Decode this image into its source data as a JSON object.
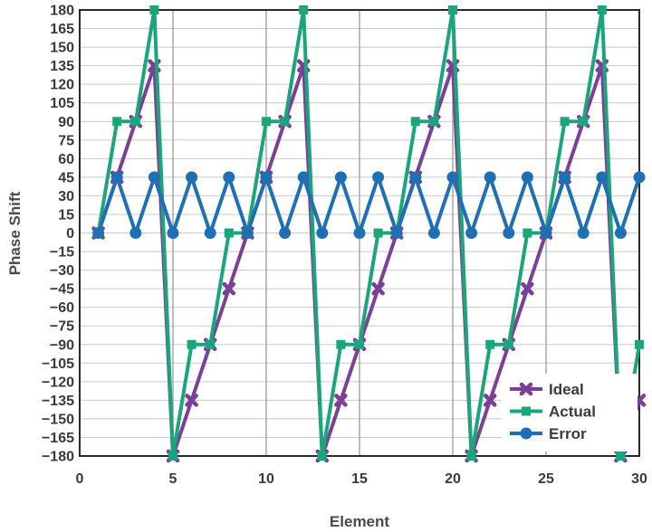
{
  "chart_data": {
    "type": "line",
    "xlabel": "Element",
    "ylabel": "Phase Shift",
    "xlim": [
      0,
      30
    ],
    "ylim": [
      -180,
      180
    ],
    "xticks": [
      0,
      5,
      10,
      15,
      20,
      25,
      30
    ],
    "yticks": [
      180,
      165,
      150,
      135,
      120,
      105,
      90,
      75,
      60,
      45,
      30,
      15,
      0,
      -15,
      -30,
      -45,
      -60,
      -75,
      -90,
      -105,
      -120,
      -135,
      -150,
      -165,
      -180
    ],
    "grid": true,
    "legend_position": "bottom-right",
    "series": [
      {
        "name": "Ideal",
        "color": "#7b3f98",
        "marker": "x",
        "points": [
          [
            1,
            0
          ],
          [
            2,
            45
          ],
          [
            3,
            90
          ],
          [
            4,
            135
          ],
          [
            5,
            -180
          ],
          [
            6,
            -135
          ],
          [
            7,
            -90
          ],
          [
            8,
            -45
          ],
          [
            9,
            0
          ],
          [
            10,
            45
          ],
          [
            11,
            90
          ],
          [
            12,
            135
          ],
          [
            13,
            -180
          ],
          [
            14,
            -135
          ],
          [
            15,
            -90
          ],
          [
            16,
            -45
          ],
          [
            17,
            0
          ],
          [
            18,
            45
          ],
          [
            19,
            90
          ],
          [
            20,
            135
          ],
          [
            21,
            -180
          ],
          [
            22,
            -135
          ],
          [
            23,
            -90
          ],
          [
            24,
            -45
          ],
          [
            25,
            0
          ],
          [
            26,
            45
          ],
          [
            27,
            90
          ],
          [
            28,
            135
          ],
          [
            29,
            -180
          ],
          [
            30,
            -135
          ]
        ]
      },
      {
        "name": "Actual",
        "color": "#1aa67a",
        "marker": "square",
        "points": [
          [
            1,
            0
          ],
          [
            2,
            90
          ],
          [
            3,
            90
          ],
          [
            4,
            180
          ],
          [
            5,
            -180
          ],
          [
            6,
            -90
          ],
          [
            7,
            -90
          ],
          [
            8,
            0
          ],
          [
            9,
            0
          ],
          [
            10,
            90
          ],
          [
            11,
            90
          ],
          [
            12,
            180
          ],
          [
            13,
            -180
          ],
          [
            14,
            -90
          ],
          [
            15,
            -90
          ],
          [
            16,
            0
          ],
          [
            17,
            0
          ],
          [
            18,
            90
          ],
          [
            19,
            90
          ],
          [
            20,
            180
          ],
          [
            21,
            -180
          ],
          [
            22,
            -90
          ],
          [
            23,
            -90
          ],
          [
            24,
            0
          ],
          [
            25,
            0
          ],
          [
            26,
            90
          ],
          [
            27,
            90
          ],
          [
            28,
            180
          ],
          [
            29,
            -180
          ],
          [
            30,
            -90
          ]
        ]
      },
      {
        "name": "Error",
        "color": "#1f6fb5",
        "marker": "circle",
        "points": [
          [
            1,
            0
          ],
          [
            2,
            45
          ],
          [
            3,
            0
          ],
          [
            4,
            45
          ],
          [
            5,
            0
          ],
          [
            6,
            45
          ],
          [
            7,
            0
          ],
          [
            8,
            45
          ],
          [
            9,
            0
          ],
          [
            10,
            45
          ],
          [
            11,
            0
          ],
          [
            12,
            45
          ],
          [
            13,
            0
          ],
          [
            14,
            45
          ],
          [
            15,
            0
          ],
          [
            16,
            45
          ],
          [
            17,
            0
          ],
          [
            18,
            45
          ],
          [
            19,
            0
          ],
          [
            20,
            45
          ],
          [
            21,
            0
          ],
          [
            22,
            45
          ],
          [
            23,
            0
          ],
          [
            24,
            45
          ],
          [
            25,
            0
          ],
          [
            26,
            45
          ],
          [
            27,
            0
          ],
          [
            28,
            45
          ],
          [
            29,
            0
          ],
          [
            30,
            45
          ]
        ]
      }
    ]
  }
}
